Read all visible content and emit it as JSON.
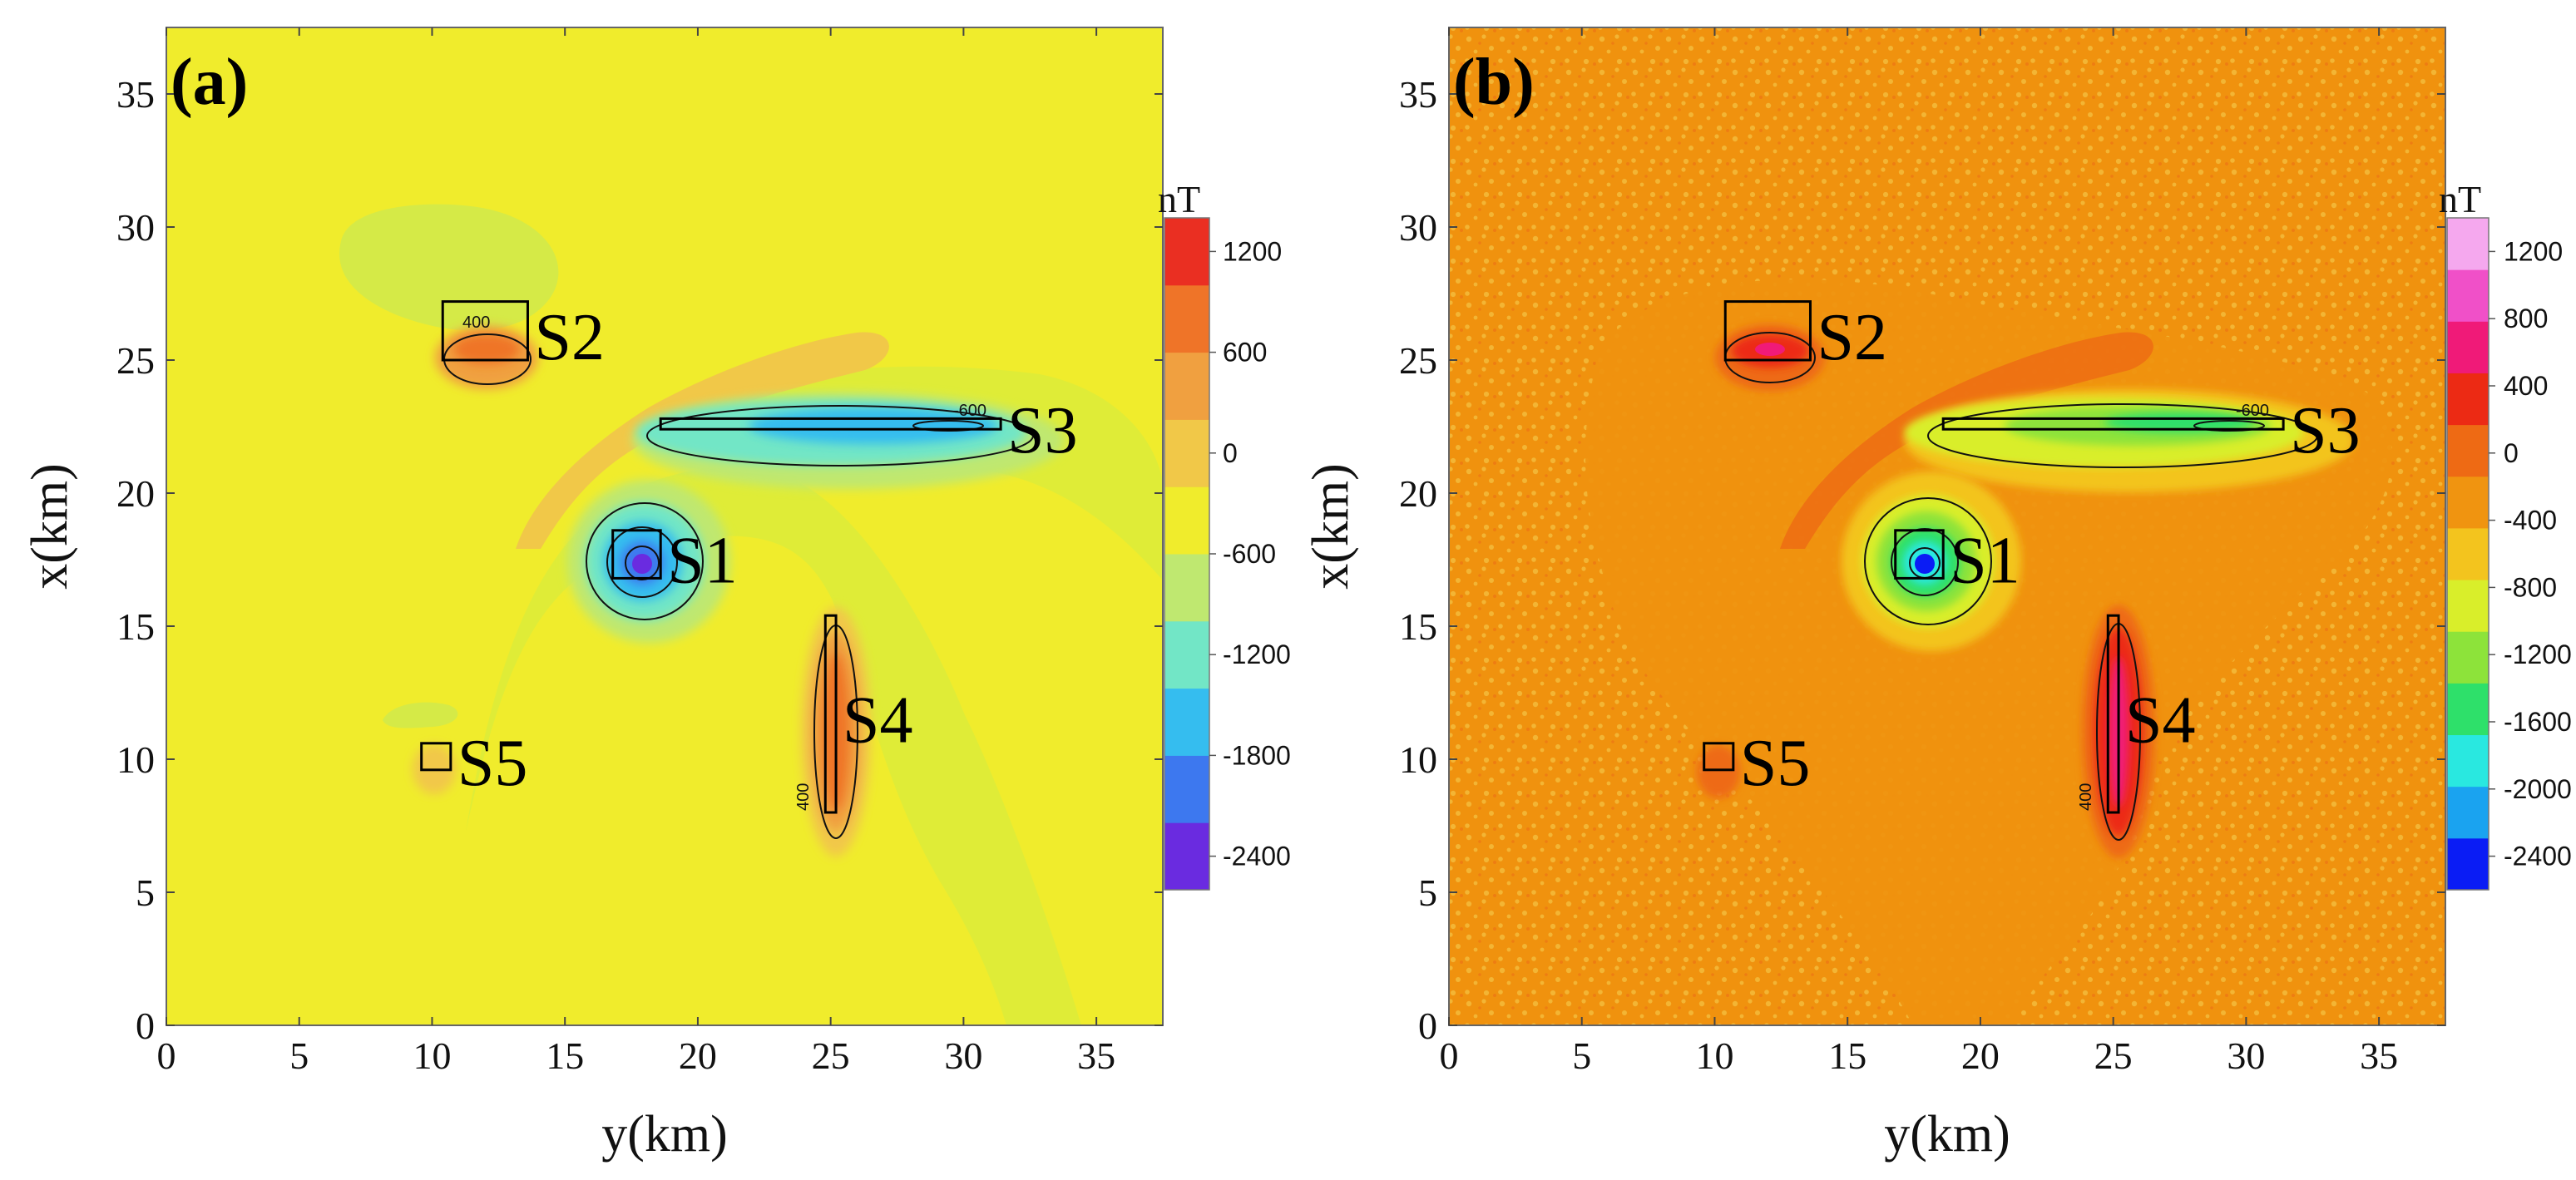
{
  "chart_data": [
    {
      "type": "heatmap",
      "panel_label": "(a)",
      "xlabel": "y(km)",
      "ylabel": "x(km)",
      "xlim": [
        0,
        37.5
      ],
      "ylim": [
        0,
        37.5
      ],
      "x_ticks": [
        "0",
        "5",
        "10",
        "15",
        "20",
        "25",
        "30",
        "35"
      ],
      "y_ticks": [
        "0",
        "5",
        "10",
        "15",
        "20",
        "25",
        "30",
        "35"
      ],
      "background_color": "#f0ec2c",
      "colorbar": {
        "unit": "nT",
        "range": [
          -2600,
          1400
        ],
        "ticks": [
          "1200",
          "600",
          "0",
          "-600",
          "-1200",
          "-1800",
          "-2400"
        ],
        "colors": [
          "#6a2be0",
          "#3d78ef",
          "#35bdef",
          "#72e6c6",
          "#bfe870",
          "#f0ec2c",
          "#f1c848",
          "#f0a040",
          "#ef7428",
          "#ea2f22"
        ]
      },
      "sources": [
        {
          "name": "S1",
          "y_range": [
            16.8,
            18.6
          ],
          "x_range": [
            16.8,
            18.6
          ]
        },
        {
          "name": "S2",
          "y_range": [
            10.4,
            13.6
          ],
          "x_range": [
            25.0,
            27.2
          ]
        },
        {
          "name": "S3",
          "y_range": [
            18.6,
            31.4
          ],
          "x_range": [
            22.4,
            22.8
          ]
        },
        {
          "name": "S4",
          "y_range": [
            24.8,
            25.2
          ],
          "x_range": [
            8.0,
            15.4
          ]
        },
        {
          "name": "S5",
          "y_range": [
            9.6,
            10.7
          ],
          "x_range": [
            9.6,
            10.6
          ]
        }
      ],
      "contour_labels": [
        "400",
        "-600",
        "400"
      ]
    },
    {
      "type": "heatmap",
      "panel_label": "(b)",
      "xlabel": "y(km)",
      "ylabel": "x(km)",
      "xlim": [
        0,
        37.5
      ],
      "ylim": [
        0,
        37.5
      ],
      "x_ticks": [
        "0",
        "5",
        "10",
        "15",
        "20",
        "25",
        "30",
        "35"
      ],
      "y_ticks": [
        "0",
        "5",
        "10",
        "15",
        "20",
        "25",
        "30",
        "35"
      ],
      "background_color": "#f0920e",
      "colorbar": {
        "unit": "nT",
        "range": [
          -2600,
          1400
        ],
        "ticks": [
          "1200",
          "800",
          "400",
          "0",
          "-400",
          "-800",
          "-1200",
          "-1600",
          "-2000",
          "-2400"
        ],
        "colors": [
          "#0a1cf5",
          "#1aa3f0",
          "#29e8e0",
          "#2ee06a",
          "#8de33a",
          "#d9ee2a",
          "#f3c41e",
          "#f09410",
          "#ee6a14",
          "#ec2a14",
          "#f01a78",
          "#f050c8",
          "#f5a8ee"
        ]
      },
      "sources": [
        {
          "name": "S1",
          "y_range": [
            16.8,
            18.6
          ],
          "x_range": [
            16.8,
            18.6
          ]
        },
        {
          "name": "S2",
          "y_range": [
            10.4,
            13.6
          ],
          "x_range": [
            25.0,
            27.2
          ]
        },
        {
          "name": "S3",
          "y_range": [
            18.6,
            31.4
          ],
          "x_range": [
            22.4,
            22.8
          ]
        },
        {
          "name": "S4",
          "y_range": [
            24.8,
            25.2
          ],
          "x_range": [
            8.0,
            15.4
          ]
        },
        {
          "name": "S5",
          "y_range": [
            9.6,
            10.7
          ],
          "x_range": [
            9.6,
            10.6
          ]
        }
      ],
      "contour_labels": [
        "-600",
        "400"
      ]
    }
  ]
}
